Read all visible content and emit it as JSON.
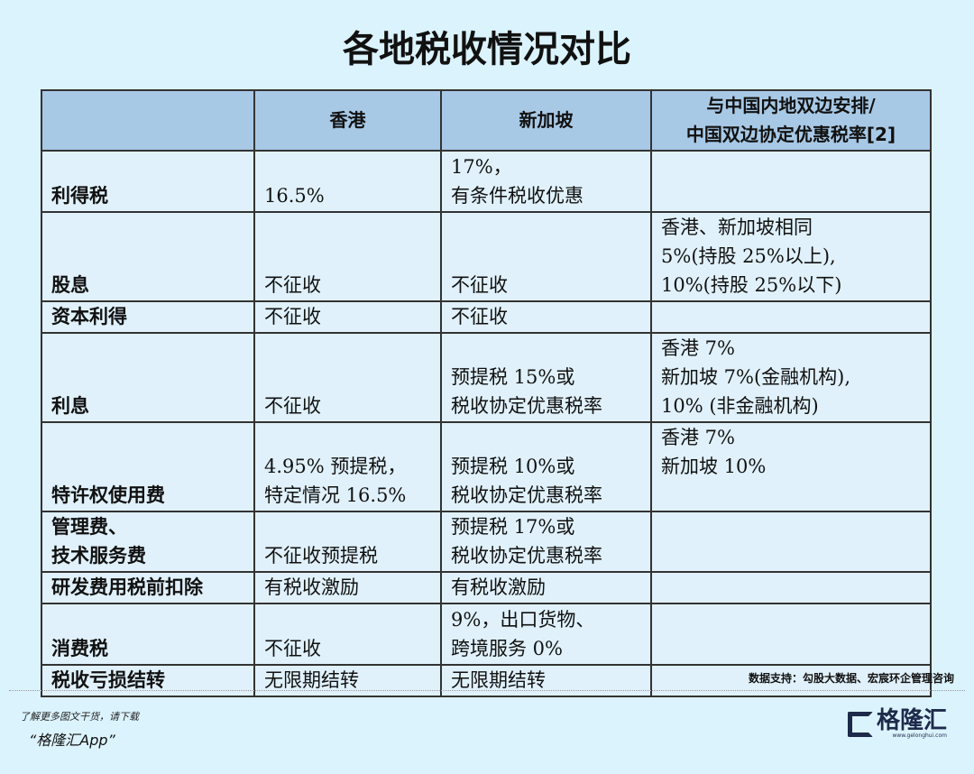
{
  "title": "各地税收情况对比",
  "table": {
    "headers": [
      "",
      "香港",
      "新加坡",
      [
        "与中国内地双边安排/",
        "中国双边协定优惠税率[2]"
      ]
    ],
    "rows": [
      {
        "item": [
          "利得税"
        ],
        "hk": [
          "16.5%"
        ],
        "sg": [
          "17%，",
          "有条件税收优惠"
        ],
        "treaty": []
      },
      {
        "item": [
          "股息"
        ],
        "hk": [
          "不征收"
        ],
        "sg": [
          "不征收"
        ],
        "treaty": [
          "香港、新加坡相同",
          "5%(持股 25%以上),",
          "10%(持股 25%以下)"
        ]
      },
      {
        "item": [
          "资本利得"
        ],
        "hk": [
          "不征收"
        ],
        "sg": [
          "不征收"
        ],
        "treaty": []
      },
      {
        "item": [
          "利息"
        ],
        "hk": [
          "不征收"
        ],
        "sg": [
          "预提税 15%或",
          "税收协定优惠税率"
        ],
        "treaty": [
          "香港 7%",
          "新加坡 7%(金融机构),",
          "10% (非金融机构)"
        ]
      },
      {
        "item": [
          "特许权使用费"
        ],
        "hk": [
          "4.95% 预提税，",
          "特定情况 16.5%"
        ],
        "sg": [
          "预提税 10%或",
          "税收协定优惠税率"
        ],
        "treaty": [
          "香港 7%",
          "新加坡 10%",
          ""
        ]
      },
      {
        "item": [
          "管理费、",
          "技术服务费"
        ],
        "hk": [
          "不征收预提税"
        ],
        "sg": [
          "预提税 17%或",
          "税收协定优惠税率"
        ],
        "treaty": []
      },
      {
        "item": [
          "研发费用税前扣除"
        ],
        "hk": [
          "有税收激励"
        ],
        "sg": [
          "有税收激励"
        ],
        "treaty": []
      },
      {
        "item": [
          "消费税"
        ],
        "hk": [
          "不征收"
        ],
        "sg": [
          "9%，出口货物、",
          "跨境服务 0%"
        ],
        "treaty": []
      },
      {
        "item": [
          "税收亏损结转"
        ],
        "hk": [
          "无限期结转"
        ],
        "sg": [
          "无限期结转"
        ],
        "treaty": []
      }
    ]
  },
  "source": "数据支持：勾股大数据、宏宸环企管理咨询",
  "promo": {
    "line1": "了解更多图文干货，请下载",
    "line2": "“格隆汇App”"
  },
  "logo": {
    "text": "格隆汇",
    "url": "www.gelonghui.com"
  },
  "colors": {
    "background": "#dbf3fd",
    "header": "#a8c9e6",
    "cell": "#e0f1fb"
  }
}
